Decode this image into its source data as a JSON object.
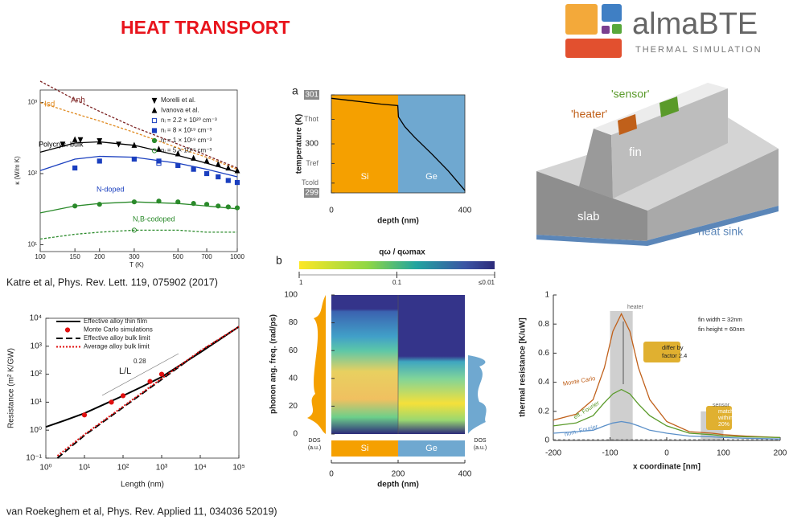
{
  "title": "HEAT TRANSPORT",
  "logo": {
    "name": "almaBTE",
    "tagline": "THERMAL SIMULATION"
  },
  "citations": [
    "Katre et al, Phys. Rev. Lett. 119, 075902 (2017)",
    "van Roekeghem et al, Phys. Rev. Applied 11, 034036 52019)"
  ],
  "diagram": {
    "labels": [
      "'sensor'",
      "'heater'",
      "fin",
      "slab",
      "heat sink"
    ]
  },
  "chart_data": [
    {
      "type": "line",
      "xlabel": "T (K)",
      "ylabel": "κ (W/m K)",
      "xscale": "log",
      "yscale": "log",
      "xlim": [
        100,
        1000
      ],
      "ylim": [
        8,
        1500
      ],
      "xticks": [
        100,
        150,
        200,
        300,
        500,
        700,
        1000
      ],
      "yticks": [
        {
          "value": 10,
          "label": "10¹"
        },
        {
          "value": 100,
          "label": "10²"
        },
        {
          "value": 1000,
          "label": "10³"
        }
      ],
      "legend": "upper right",
      "series": [
        {
          "color": "#7a1f1f",
          "dash": "3,2",
          "x": [
            100,
            150,
            200,
            300,
            500,
            700,
            1000
          ],
          "values": [
            2000,
            1100,
            750,
            450,
            260,
            180,
            120
          ]
        },
        {
          "color": "#e08a20",
          "dash": "3,2",
          "x": [
            100,
            150,
            200,
            300,
            500,
            700,
            1000
          ],
          "values": [
            1000,
            700,
            550,
            380,
            230,
            170,
            115
          ]
        },
        {
          "color": "#000000",
          "x": [
            100,
            150,
            200,
            300,
            500,
            700,
            1000
          ],
          "values": [
            200,
            270,
            280,
            250,
            180,
            140,
            105
          ]
        },
        {
          "color": "#1a3fbf",
          "x": [
            100,
            150,
            200,
            300,
            500,
            700,
            1000
          ],
          "values": [
            110,
            160,
            175,
            170,
            140,
            115,
            90
          ]
        },
        {
          "color": "#2a8a2a",
          "x": [
            100,
            150,
            200,
            300,
            500,
            700,
            1000
          ],
          "values": [
            28,
            35,
            38,
            40,
            38,
            35,
            32
          ]
        },
        {
          "color": "#2a8a2a",
          "dash": "3,2",
          "x": [
            100,
            150,
            200,
            300,
            500,
            700,
            1000
          ],
          "values": [
            12,
            14,
            15,
            16,
            16,
            15,
            15
          ]
        },
        {
          "name": "Morelli et al.",
          "color": "#000000",
          "marker": "v",
          "x": [
            130,
            160,
            200,
            250
          ],
          "values": [
            260,
            300,
            290,
            260
          ]
        },
        {
          "name": "Ivanova et al.",
          "color": "#000000",
          "marker": "^",
          "x": [
            150,
            200,
            300,
            400,
            500,
            600,
            700,
            800,
            900,
            1000
          ],
          "values": [
            300,
            280,
            250,
            220,
            190,
            165,
            150,
            135,
            120,
            110
          ]
        },
        {
          "name": "nᵢ = 2.2 × 10²⁰ cm⁻³",
          "color": "#1a3fbf",
          "marker": "s-open",
          "x": [
            400
          ],
          "values": [
            140
          ]
        },
        {
          "name": "nᵢ = 8 × 10¹⁹ cm⁻³",
          "color": "#1a3fbf",
          "marker": "s",
          "x": [
            150,
            200,
            300,
            400,
            500,
            600,
            700,
            800,
            900,
            1000
          ],
          "values": [
            120,
            150,
            160,
            150,
            130,
            115,
            100,
            90,
            80,
            75
          ]
        },
        {
          "name": "nᵢ = 1 × 10¹⁹ cm⁻³",
          "color": "#2a8a2a",
          "marker": "o",
          "x": [
            150,
            200,
            300,
            400,
            500,
            600,
            700,
            800,
            900,
            1000
          ],
          "values": [
            35,
            37,
            40,
            41,
            40,
            38,
            37,
            35,
            34,
            33
          ]
        },
        {
          "name": "nᵢ = 5 × 10¹⁸ cm⁻³",
          "color": "#2a8a2a",
          "marker": "o-open",
          "x": [
            300
          ],
          "values": [
            16
          ]
        }
      ],
      "annotations": [
        {
          "text": "Anh",
          "color": "#7a1f1f"
        },
        {
          "text": "Isd",
          "color": "#e08a20"
        },
        {
          "text": "Polycrys. bulk",
          "color": "#000000"
        },
        {
          "text": "N-doped",
          "color": "#1a3fbf"
        },
        {
          "text": "N,B-codoped",
          "color": "#2a8a2a"
        }
      ]
    },
    {
      "type": "line",
      "panel": "a",
      "xlabel": "depth (nm)",
      "ylabel": "temperature (K)",
      "xlim": [
        0,
        400
      ],
      "ylim": [
        299,
        301
      ],
      "xticks": [
        0,
        400
      ],
      "yticks": [
        301,
        300,
        299
      ],
      "ref_labels": [
        {
          "value": 300.5,
          "label": "Thot"
        },
        {
          "value": 299.6,
          "label": "Tref"
        },
        {
          "value": 299.2,
          "label": "Tcold"
        }
      ],
      "regions": [
        {
          "label": "Si",
          "color": "#f5a000",
          "range": [
            0,
            200
          ]
        },
        {
          "label": "Ge",
          "color": "#6fa8d0",
          "range": [
            200,
            400
          ]
        }
      ],
      "series": [
        {
          "color": "#000000",
          "x": [
            0,
            50,
            100,
            150,
            199,
            201,
            220,
            250,
            300,
            350,
            400
          ],
          "values": [
            300.93,
            300.89,
            300.85,
            300.81,
            300.78,
            300.55,
            300.35,
            300.13,
            299.8,
            299.45,
            299.05
          ]
        }
      ]
    },
    {
      "type": "heatmap",
      "panel": "b",
      "xlabel": "depth (nm)",
      "ylabel": "phonon ang. freq. (rad/ps)",
      "xlim": [
        0,
        400
      ],
      "ylim": [
        0,
        100
      ],
      "xticks": [
        0,
        200,
        400
      ],
      "yticks": [
        0,
        20,
        40,
        60,
        80,
        100
      ],
      "colorbar": {
        "label": "qω / qωmax",
        "scale": "log",
        "lim": [
          1,
          0.01
        ],
        "ticks": [
          1,
          0.1,
          {
            "value": 0.01,
            "label": "≤0.01"
          }
        ]
      },
      "dos_label": [
        "DOS",
        "(a.u.)"
      ],
      "regions": [
        {
          "label": "Si",
          "color": "#f5a000",
          "range": [
            0,
            200
          ]
        },
        {
          "label": "Ge",
          "color": "#6fa8d0",
          "range": [
            200,
            400
          ]
        }
      ]
    },
    {
      "type": "line",
      "xlabel": "Length (nm)",
      "ylabel": "Resistance (m² K/GW)",
      "xscale": "log",
      "yscale": "log",
      "xlim": [
        1,
        100000
      ],
      "ylim": [
        0.1,
        10000
      ],
      "xticks": [
        {
          "value": 1,
          "label": "10⁰"
        },
        {
          "value": 10,
          "label": "10¹"
        },
        {
          "value": 100,
          "label": "10²"
        },
        {
          "value": 1000,
          "label": "10³"
        },
        {
          "value": 10000,
          "label": "10⁴"
        },
        {
          "value": 100000,
          "label": "10⁵"
        }
      ],
      "yticks": [
        {
          "value": 0.1,
          "label": "10⁻¹"
        },
        {
          "value": 1,
          "label": "10⁰"
        },
        {
          "value": 10,
          "label": "10¹"
        },
        {
          "value": 100,
          "label": "10²"
        },
        {
          "value": 1000,
          "label": "10³"
        },
        {
          "value": 10000,
          "label": "10⁴"
        }
      ],
      "legend": "upper left",
      "series": [
        {
          "name": "Effective alloy thin film",
          "color": "#000000",
          "width": 2,
          "x": [
            1,
            3,
            10,
            30,
            100,
            300,
            1000,
            10000,
            100000
          ],
          "values": [
            1.3,
            2.2,
            4,
            8,
            17,
            35,
            80,
            600,
            5000
          ]
        },
        {
          "name": "Monte Carlo simulations",
          "color": "#e01010",
          "marker": "o",
          "x": [
            10,
            50,
            100,
            500,
            1000
          ],
          "values": [
            3.5,
            10,
            17,
            55,
            100
          ]
        },
        {
          "name": "Effective alloy bulk limit",
          "color": "#000000",
          "width": 2,
          "dash": "8,4",
          "x": [
            2,
            10,
            100,
            1000,
            10000,
            100000
          ],
          "values": [
            0.1,
            0.65,
            6.5,
            65,
            650,
            5000
          ]
        },
        {
          "name": "Average alloy bulk limit",
          "color": "#e01010",
          "width": 2,
          "dash": "2,2",
          "x": [
            2,
            10,
            100,
            1000,
            10000,
            100000
          ],
          "values": [
            0.12,
            0.7,
            7,
            70,
            680,
            5000
          ]
        }
      ],
      "annotations": [
        "L/L",
        "0.28"
      ]
    },
    {
      "type": "line",
      "xlabel": "x coordinate [nm]",
      "ylabel": "thermal resistance [K/uW]",
      "xlim": [
        -200,
        200
      ],
      "ylim": [
        0,
        1
      ],
      "xticks": [
        -200,
        -100,
        0,
        100,
        200
      ],
      "yticks": [
        0,
        0.2,
        0.4,
        0.6,
        0.8,
        1
      ],
      "shaded_ranges": [
        [
          -100,
          -60
        ],
        [
          60,
          100
        ]
      ],
      "series": [
        {
          "name": "Monte Carlo",
          "color": "#c0601a",
          "x": [
            -200,
            -160,
            -130,
            -110,
            -95,
            -80,
            -65,
            -50,
            -30,
            0,
            40,
            80,
            100,
            140,
            200
          ],
          "values": [
            0.14,
            0.18,
            0.28,
            0.5,
            0.75,
            0.87,
            0.75,
            0.5,
            0.28,
            0.13,
            0.06,
            0.05,
            0.04,
            0.03,
            0.02
          ]
        },
        {
          "name": "eff. Fourier",
          "color": "#5a9a2a",
          "x": [
            -200,
            -160,
            -130,
            -110,
            -95,
            -80,
            -65,
            -50,
            -30,
            0,
            40,
            80,
            100,
            140,
            200
          ],
          "values": [
            0.1,
            0.12,
            0.17,
            0.26,
            0.32,
            0.35,
            0.32,
            0.25,
            0.17,
            0.1,
            0.05,
            0.04,
            0.03,
            0.025,
            0.02
          ]
        },
        {
          "name": "nom. Fourier",
          "color": "#5a8fc8",
          "x": [
            -200,
            -160,
            -130,
            -110,
            -95,
            -80,
            -65,
            -50,
            -30,
            0,
            40,
            80,
            100,
            140,
            200
          ],
          "values": [
            0.05,
            0.06,
            0.07,
            0.1,
            0.12,
            0.13,
            0.12,
            0.1,
            0.07,
            0.05,
            0.03,
            0.025,
            0.02,
            0.015,
            0.01
          ]
        }
      ],
      "annotations": [
        "heater",
        "sensor",
        "fin width = 32nm",
        "fin height = 60nm",
        "differ by",
        "factor 2.4",
        "match",
        "within",
        "20%"
      ]
    }
  ]
}
